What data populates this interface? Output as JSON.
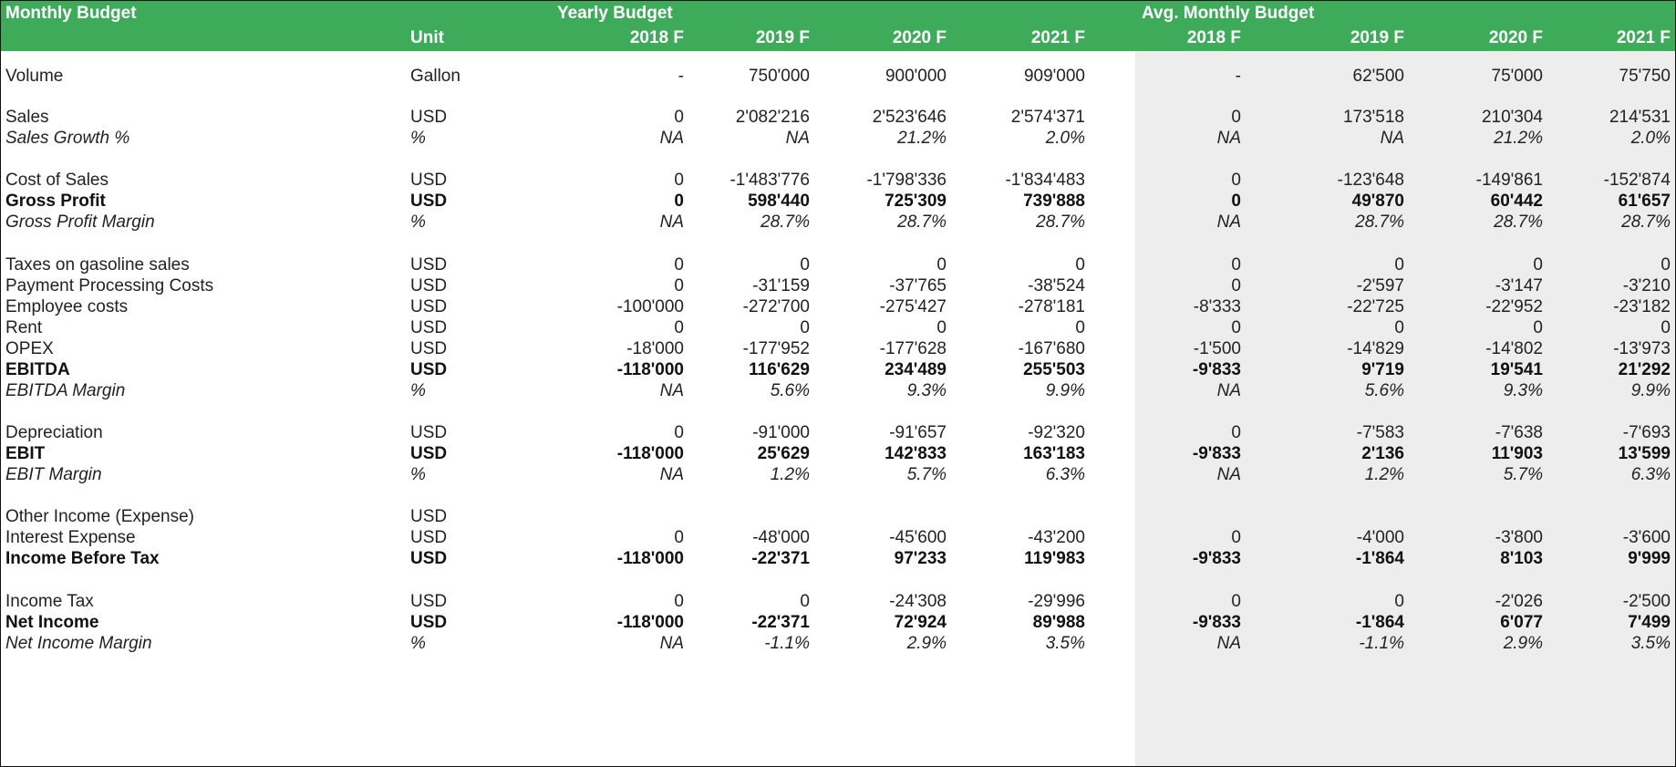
{
  "header": {
    "title": "Monthly Budget",
    "unit_label": "Unit",
    "yearly_label": "Yearly Budget",
    "monthly_label": "Avg. Monthly Budget",
    "years": [
      "2018 F",
      "2019 F",
      "2020 F",
      "2021 F",
      "2018 F",
      "2019 F",
      "2020 F",
      "2021 F"
    ]
  },
  "colors": {
    "header_bg": "#3dab5a",
    "monthly_bg": "#ededed"
  },
  "rows": [
    {
      "label": "Volume",
      "unit": "Gallon",
      "style": "normal",
      "values": [
        "-",
        "750'000",
        "900'000",
        "909'000",
        "-",
        "62'500",
        "75'000",
        "75'750"
      ]
    },
    {
      "label": "Sales",
      "unit": "USD",
      "style": "normal",
      "values": [
        "0",
        "2'082'216",
        "2'523'646",
        "2'574'371",
        "0",
        "173'518",
        "210'304",
        "214'531"
      ]
    },
    {
      "label": "Sales Growth %",
      "unit": "%",
      "style": "italic",
      "values": [
        "NA",
        "NA",
        "21.2%",
        "2.0%",
        "NA",
        "NA",
        "21.2%",
        "2.0%"
      ]
    },
    {
      "label": "Cost of Sales",
      "unit": "USD",
      "style": "normal",
      "values": [
        "0",
        "-1'483'776",
        "-1'798'336",
        "-1'834'483",
        "0",
        "-123'648",
        "-149'861",
        "-152'874"
      ]
    },
    {
      "label": "Gross Profit",
      "unit": "USD",
      "style": "bold",
      "values": [
        "0",
        "598'440",
        "725'309",
        "739'888",
        "0",
        "49'870",
        "60'442",
        "61'657"
      ]
    },
    {
      "label": "Gross Profit Margin",
      "unit": "%",
      "style": "italic",
      "values": [
        "NA",
        "28.7%",
        "28.7%",
        "28.7%",
        "NA",
        "28.7%",
        "28.7%",
        "28.7%"
      ]
    },
    {
      "label": "Taxes on gasoline sales",
      "unit": "USD",
      "style": "normal",
      "values": [
        "0",
        "0",
        "0",
        "0",
        "0",
        "0",
        "0",
        "0"
      ]
    },
    {
      "label": "Payment Processing Costs",
      "unit": "USD",
      "style": "normal",
      "values": [
        "0",
        "-31'159",
        "-37'765",
        "-38'524",
        "0",
        "-2'597",
        "-3'147",
        "-3'210"
      ]
    },
    {
      "label": "Employee costs",
      "unit": "USD",
      "style": "normal",
      "values": [
        "-100'000",
        "-272'700",
        "-275'427",
        "-278'181",
        "-8'333",
        "-22'725",
        "-22'952",
        "-23'182"
      ]
    },
    {
      "label": "Rent",
      "unit": "USD",
      "style": "normal",
      "values": [
        "0",
        "0",
        "0",
        "0",
        "0",
        "0",
        "0",
        "0"
      ]
    },
    {
      "label": "OPEX",
      "unit": "USD",
      "style": "normal",
      "values": [
        "-18'000",
        "-177'952",
        "-177'628",
        "-167'680",
        "-1'500",
        "-14'829",
        "-14'802",
        "-13'973"
      ]
    },
    {
      "label": "EBITDA",
      "unit": "USD",
      "style": "bold",
      "values": [
        "-118'000",
        "116'629",
        "234'489",
        "255'503",
        "-9'833",
        "9'719",
        "19'541",
        "21'292"
      ]
    },
    {
      "label": "EBITDA Margin",
      "unit": "%",
      "style": "italic",
      "values": [
        "NA",
        "5.6%",
        "9.3%",
        "9.9%",
        "NA",
        "5.6%",
        "9.3%",
        "9.9%"
      ]
    },
    {
      "label": "Depreciation",
      "unit": "USD",
      "style": "normal",
      "values": [
        "0",
        "-91'000",
        "-91'657",
        "-92'320",
        "0",
        "-7'583",
        "-7'638",
        "-7'693"
      ]
    },
    {
      "label": "EBIT",
      "unit": "USD",
      "style": "bold",
      "values": [
        "-118'000",
        "25'629",
        "142'833",
        "163'183",
        "-9'833",
        "2'136",
        "11'903",
        "13'599"
      ]
    },
    {
      "label": "EBIT Margin",
      "unit": "%",
      "style": "italic",
      "values": [
        "NA",
        "1.2%",
        "5.7%",
        "6.3%",
        "NA",
        "1.2%",
        "5.7%",
        "6.3%"
      ]
    },
    {
      "label": "Other Income (Expense)",
      "unit": "USD",
      "style": "normal",
      "values": [
        "",
        "",
        "",
        "",
        "",
        "",
        "",
        ""
      ]
    },
    {
      "label": "Interest Expense",
      "unit": "USD",
      "style": "normal",
      "values": [
        "0",
        "-48'000",
        "-45'600",
        "-43'200",
        "0",
        "-4'000",
        "-3'800",
        "-3'600"
      ]
    },
    {
      "label": "Income Before Tax",
      "unit": "USD",
      "style": "bold",
      "values": [
        "-118'000",
        "-22'371",
        "97'233",
        "119'983",
        "-9'833",
        "-1'864",
        "8'103",
        "9'999"
      ]
    },
    {
      "label": "Income Tax",
      "unit": "USD",
      "style": "normal",
      "values": [
        "0",
        "0",
        "-24'308",
        "-29'996",
        "0",
        "0",
        "-2'026",
        "-2'500"
      ]
    },
    {
      "label": "Net Income",
      "unit": "USD",
      "style": "bold",
      "values": [
        "-118'000",
        "-22'371",
        "72'924",
        "89'988",
        "-9'833",
        "-1'864",
        "6'077",
        "7'499"
      ]
    },
    {
      "label": "Net Income Margin",
      "unit": "%",
      "style": "italic",
      "values": [
        "NA",
        "-1.1%",
        "2.9%",
        "3.5%",
        "NA",
        "-1.1%",
        "2.9%",
        "3.5%"
      ]
    }
  ]
}
